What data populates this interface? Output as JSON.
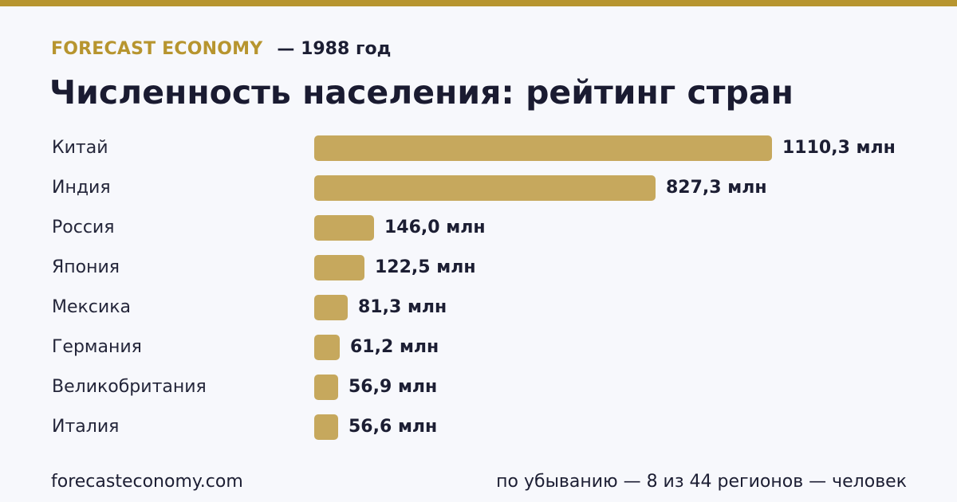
{
  "colors": {
    "accent": "#b7952f",
    "bar": "#c6a85d",
    "text": "#1c1e33",
    "background": "#f7f8fc"
  },
  "header": {
    "brand": "FORECAST ECONOMY",
    "year": "— 1988 год"
  },
  "footer": {
    "site": "forecasteconomy.com",
    "note": "по убыванию — 8 из 44 регионов — человек"
  },
  "chart_data": {
    "type": "bar",
    "orientation": "horizontal",
    "title": "Численность населения: рейтинг стран",
    "unit": "млн",
    "categories": [
      "Китай",
      "Индия",
      "Россия",
      "Япония",
      "Мексика",
      "Германия",
      "Великобритания",
      "Италия"
    ],
    "values": [
      1110.3,
      827.3,
      146.0,
      122.5,
      81.3,
      61.2,
      56.9,
      56.6
    ],
    "value_labels": [
      "1110,3 млн",
      "827,3 млн",
      "146,0 млн",
      "122,5 млн",
      "81,3 млн",
      "61,2 млн",
      "56,9 млн",
      "56,6 млн"
    ],
    "xlim": [
      0,
      1110.3
    ],
    "grid": false,
    "legend": "none"
  }
}
